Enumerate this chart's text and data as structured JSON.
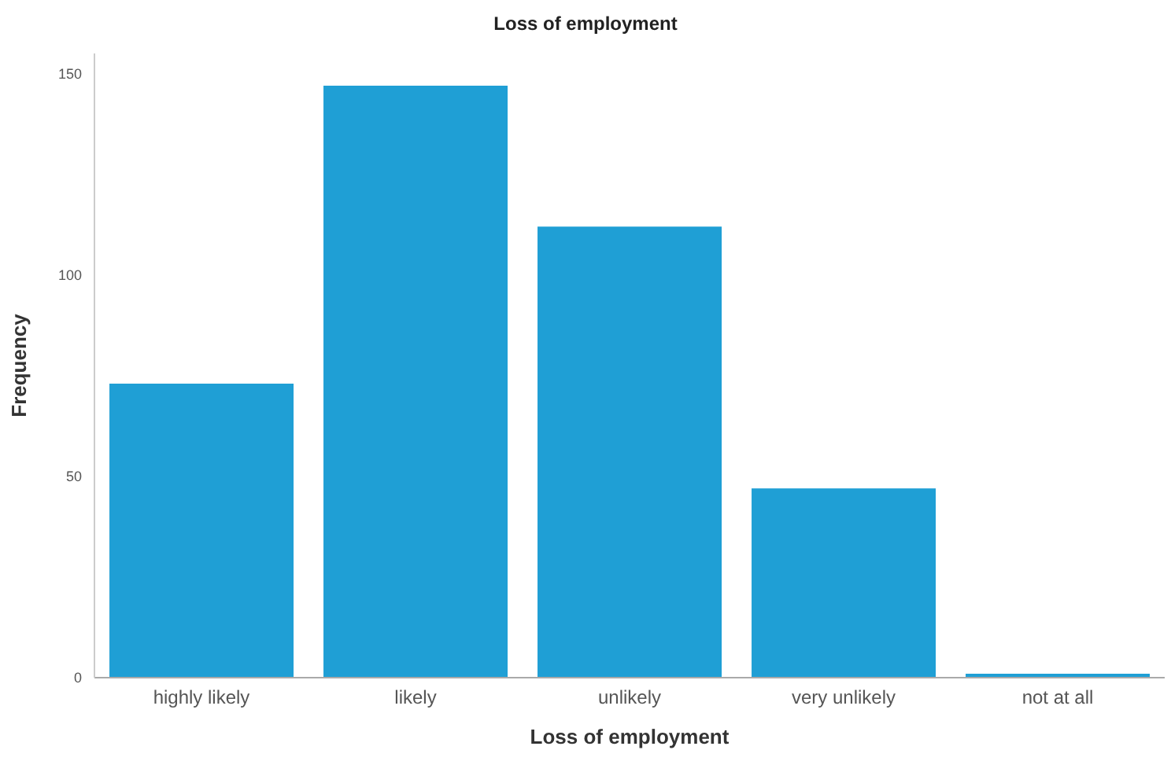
{
  "chart_data": {
    "type": "bar",
    "title": "Loss of employment",
    "xlabel": "Loss of employment",
    "ylabel": "Frequency",
    "categories": [
      "highly likely",
      "likely",
      "unlikely",
      "very unlikely",
      "not at all"
    ],
    "values": [
      73,
      147,
      112,
      47,
      1
    ],
    "color": "#1f9fd5",
    "ylim": [
      0,
      155
    ],
    "yticks": [
      0,
      50,
      100,
      150
    ],
    "grid": false
  }
}
